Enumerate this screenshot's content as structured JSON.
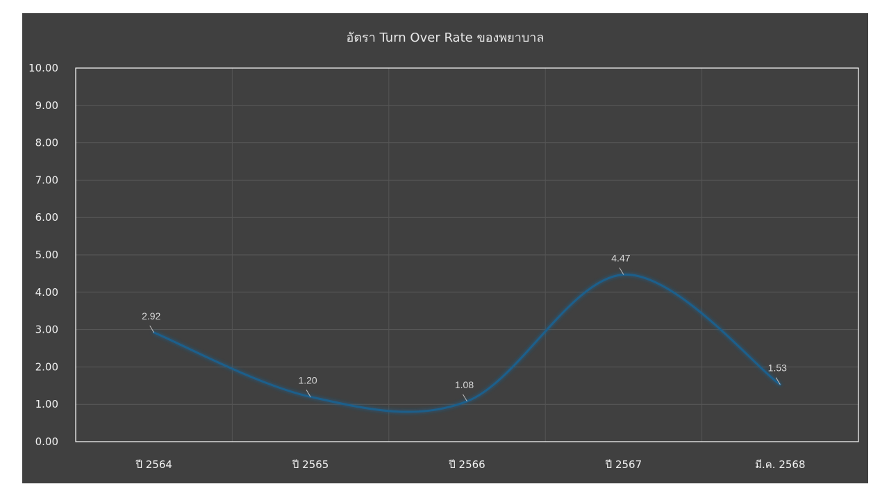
{
  "chart_data": {
    "type": "line",
    "title": "อัตรา Turn Over Rate ของพยาบาล",
    "categories": [
      "ปี 2564",
      "ปี 2565",
      "ปี 2566",
      "ปี 2567",
      "มี.ค. 2568"
    ],
    "values": [
      2.92,
      1.2,
      1.08,
      4.47,
      1.53
    ],
    "data_labels": [
      "2.92",
      "1.20",
      "1.08",
      "4.47",
      "1.53"
    ],
    "ylim": [
      0,
      10
    ],
    "yticks": [
      "0.00",
      "1.00",
      "2.00",
      "3.00",
      "4.00",
      "5.00",
      "6.00",
      "7.00",
      "8.00",
      "9.00",
      "10.00"
    ],
    "smooth": true,
    "grid": true,
    "line_color": "#1f5f8b",
    "background_color": "#404040",
    "plot_border_color": "#ffffff"
  }
}
